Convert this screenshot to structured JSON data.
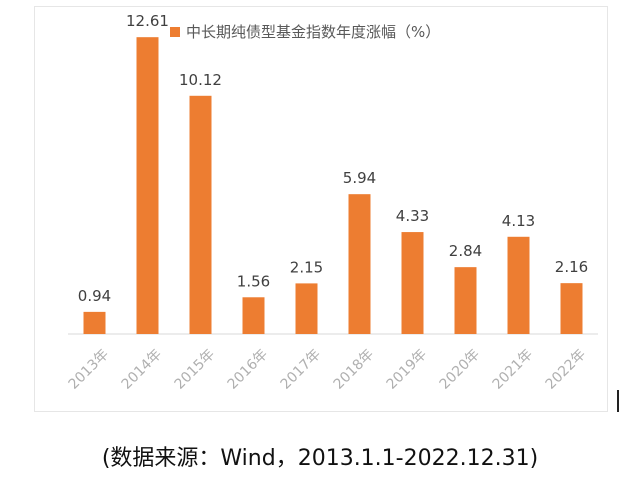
{
  "chart_data": {
    "type": "bar",
    "legend": "中长期纯债型基金指数年度涨幅（%）",
    "legend_position": "top-center",
    "categories": [
      "2013年",
      "2014年",
      "2015年",
      "2016年",
      "2017年",
      "2018年",
      "2019年",
      "2020年",
      "2021年",
      "2022年"
    ],
    "values": [
      0.94,
      12.61,
      10.12,
      1.56,
      2.15,
      5.94,
      4.33,
      2.84,
      4.13,
      2.16
    ],
    "data_labels": [
      "0.94",
      "12.61",
      "10.12",
      "1.56",
      "2.15",
      "5.94",
      "4.33",
      "2.84",
      "4.13",
      "2.16"
    ],
    "ylim": [
      0,
      13
    ],
    "grid": false,
    "bar_color": "#ED7D31",
    "tick_label_color": "#B0B0B0"
  },
  "caption": "(数据来源：Wind，2013.1.1-2022.12.31)"
}
